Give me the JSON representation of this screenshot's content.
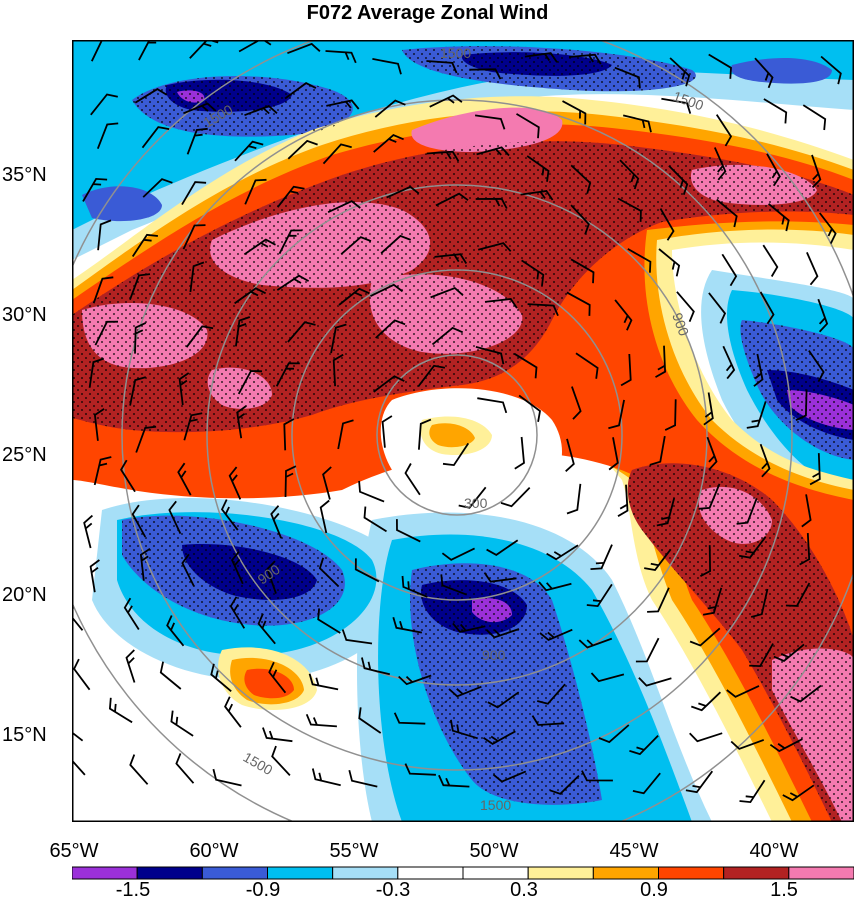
{
  "title": "F072 Average Zonal Wind",
  "lat_labels": [
    "35°N",
    "30°N",
    "25°N",
    "20°N",
    "15°N"
  ],
  "lon_labels": [
    "65°W",
    "60°W",
    "55°W",
    "50°W",
    "45°W",
    "40°W"
  ],
  "contour_labels": [
    "300",
    "900",
    "1500"
  ],
  "colorbar": {
    "colors": [
      "#9b30d9",
      "#00008b",
      "#3a5bd6",
      "#00bff0",
      "#a6dff7",
      "#ffffff",
      "#ffffff",
      "#fff099",
      "#ffa500",
      "#ff4500",
      "#b22222",
      "#f47ab0"
    ],
    "tick_labels": [
      "-1.5",
      "-0.9",
      "-0.3",
      "0.3",
      "0.9",
      "1.5"
    ]
  }
}
